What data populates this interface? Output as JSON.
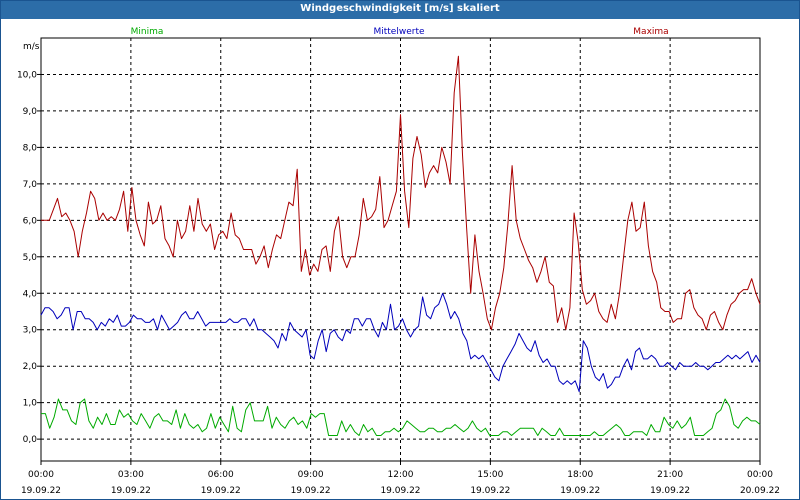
{
  "window": {
    "title": "Windgeschwindigkeit [m/s] skaliert"
  },
  "colors": {
    "min": "#00aa00",
    "mean": "#0000bb",
    "max": "#aa0000",
    "grid": "#000000",
    "titlebar": "#2c6da8"
  },
  "chart_data": {
    "type": "line",
    "title": "Windgeschwindigkeit [m/s] skaliert",
    "ylabel": "m/s",
    "xlabel": "",
    "ylim": [
      -0.6,
      11.0
    ],
    "xlim": [
      0,
      24
    ],
    "grid": true,
    "legend": "top",
    "yticks": [
      "0,0",
      "1,0",
      "2,0",
      "3,0",
      "4,0",
      "5,0",
      "6,0",
      "7,0",
      "8,0",
      "9,0",
      "10,0"
    ],
    "ytick_values": [
      0,
      1,
      2,
      3,
      4,
      5,
      6,
      7,
      8,
      9,
      10
    ],
    "xticks": [
      {
        "time": "00:00",
        "date": "19.09.22"
      },
      {
        "time": "03:00",
        "date": "19.09.22"
      },
      {
        "time": "06:00",
        "date": "19.09.22"
      },
      {
        "time": "09:00",
        "date": "19.09.22"
      },
      {
        "time": "12:00",
        "date": "19.09.22"
      },
      {
        "time": "15:00",
        "date": "19.09.22"
      },
      {
        "time": "18:00",
        "date": "19.09.22"
      },
      {
        "time": "21:00",
        "date": "19.09.22"
      },
      {
        "time": "00:00",
        "date": "20.09.22"
      }
    ],
    "series": [
      {
        "name": "Minima",
        "color": "#00aa00",
        "values": [
          0.7,
          0.7,
          0.3,
          0.6,
          1.1,
          0.8,
          0.8,
          0.5,
          0.4,
          1.0,
          1.1,
          0.5,
          0.3,
          0.6,
          0.4,
          0.7,
          0.4,
          0.4,
          0.8,
          0.6,
          0.7,
          0.5,
          0.4,
          0.7,
          0.5,
          0.3,
          0.6,
          0.7,
          0.5,
          0.5,
          0.4,
          0.8,
          0.3,
          0.7,
          0.4,
          0.3,
          0.4,
          0.2,
          0.3,
          0.7,
          0.3,
          0.6,
          0.4,
          0.2,
          0.9,
          0.3,
          0.2,
          0.8,
          1.0,
          0.5,
          0.5,
          0.5,
          0.9,
          0.3,
          0.6,
          0.4,
          0.3,
          0.5,
          0.6,
          0.4,
          0.5,
          0.3,
          0.7,
          0.6,
          0.7,
          0.7,
          0.1,
          0.1,
          0.1,
          0.5,
          0.2,
          0.4,
          0.2,
          0.1,
          0.4,
          0.2,
          0.3,
          0.1,
          0.1,
          0.2,
          0.2,
          0.3,
          0.2,
          0.3,
          0.5,
          0.4,
          0.3,
          0.2,
          0.2,
          0.3,
          0.3,
          0.2,
          0.2,
          0.3,
          0.3,
          0.4,
          0.3,
          0.2,
          0.3,
          0.5,
          0.3,
          0.2,
          0.3,
          0.1,
          0.1,
          0.1,
          0.2,
          0.2,
          0.1,
          0.2,
          0.3,
          0.3,
          0.3,
          0.3,
          0.1,
          0.3,
          0.2,
          0.1,
          0.1,
          0.3,
          0.1,
          0.1,
          0.1,
          0.1,
          0.1,
          0.1,
          0.1,
          0.2,
          0.1,
          0.1,
          0.2,
          0.3,
          0.4,
          0.3,
          0.1,
          0.1,
          0.2,
          0.2,
          0.2,
          0.1,
          0.4,
          0.2,
          0.2,
          0.6,
          0.4,
          0.3,
          0.5,
          0.3,
          0.4,
          0.6,
          0.1,
          0.1,
          0.1,
          0.2,
          0.3,
          0.7,
          0.8,
          1.1,
          0.9,
          0.4,
          0.3,
          0.5,
          0.6,
          0.5,
          0.5,
          0.4
        ]
      },
      {
        "name": "Mittelwerte",
        "color": "#0000bb",
        "values": [
          3.4,
          3.6,
          3.6,
          3.5,
          3.3,
          3.4,
          3.6,
          3.6,
          3.0,
          3.5,
          3.5,
          3.3,
          3.3,
          3.2,
          3.0,
          3.2,
          3.1,
          3.3,
          3.2,
          3.4,
          3.1,
          3.1,
          3.2,
          3.4,
          3.3,
          3.3,
          3.2,
          3.2,
          3.3,
          3.0,
          3.4,
          3.2,
          3.0,
          3.1,
          3.2,
          3.4,
          3.5,
          3.3,
          3.3,
          3.5,
          3.3,
          3.1,
          3.2,
          3.2,
          3.2,
          3.2,
          3.2,
          3.3,
          3.2,
          3.2,
          3.3,
          3.3,
          3.1,
          3.3,
          3.0,
          3.0,
          2.9,
          2.8,
          2.7,
          2.5,
          2.9,
          2.7,
          3.2,
          3.0,
          2.9,
          2.8,
          3.0,
          2.3,
          2.2,
          2.7,
          3.0,
          2.4,
          2.9,
          3.0,
          2.8,
          2.7,
          3.0,
          2.9,
          3.3,
          3.3,
          3.1,
          3.3,
          3.3,
          3.0,
          2.8,
          3.2,
          3.0,
          3.7,
          3.0,
          3.1,
          3.3,
          3.0,
          2.8,
          3.0,
          3.1,
          3.9,
          3.4,
          3.3,
          3.6,
          3.7,
          4.0,
          3.7,
          3.3,
          3.5,
          3.3,
          2.9,
          2.7,
          2.2,
          2.3,
          2.2,
          2.3,
          2.1,
          1.9,
          1.7,
          1.6,
          2.0,
          2.2,
          2.4,
          2.6,
          2.9,
          2.7,
          2.5,
          2.4,
          2.7,
          2.3,
          2.1,
          2.2,
          2.0,
          2.0,
          1.6,
          1.5,
          1.6,
          1.5,
          1.6,
          1.3,
          2.7,
          2.5,
          2.0,
          1.7,
          1.6,
          1.8,
          1.4,
          1.5,
          1.7,
          1.7,
          2.0,
          2.2,
          1.9,
          2.4,
          2.5,
          2.2,
          2.2,
          2.3,
          2.2,
          2.0,
          2.0,
          2.1,
          2.0,
          1.9,
          2.1,
          2.0,
          2.0,
          2.0,
          2.1,
          2.0,
          2.0,
          1.9,
          2.0,
          2.1,
          2.1,
          2.2,
          2.3,
          2.2,
          2.3,
          2.2,
          2.3,
          2.4,
          2.1,
          2.3,
          2.1
        ]
      },
      {
        "name": "Maxima",
        "color": "#aa0000",
        "values": [
          6.0,
          6.0,
          6.0,
          6.3,
          6.6,
          6.1,
          6.2,
          6.0,
          5.7,
          5.0,
          5.7,
          6.2,
          6.8,
          6.6,
          6.0,
          6.2,
          6.0,
          6.1,
          6.0,
          6.3,
          6.8,
          5.7,
          6.9,
          6.0,
          5.6,
          5.3,
          6.5,
          5.9,
          6.0,
          6.4,
          5.5,
          5.3,
          5.0,
          6.0,
          5.5,
          5.7,
          6.4,
          5.7,
          6.6,
          5.9,
          5.7,
          5.9,
          5.2,
          5.6,
          5.7,
          5.5,
          6.2,
          5.6,
          5.5,
          5.2,
          5.2,
          5.2,
          4.8,
          5.0,
          5.3,
          4.7,
          5.2,
          5.6,
          5.5,
          6.0,
          6.5,
          6.4,
          7.4,
          4.6,
          5.2,
          4.5,
          4.8,
          4.6,
          5.2,
          5.3,
          4.6,
          5.7,
          6.1,
          5.0,
          4.7,
          5.0,
          5.0,
          5.6,
          6.6,
          6.0,
          6.1,
          6.3,
          7.2,
          5.8,
          6.0,
          6.4,
          6.8,
          8.9,
          6.8,
          5.8,
          7.7,
          8.3,
          7.8,
          6.9,
          7.3,
          7.5,
          7.3,
          8.0,
          7.6,
          7.0,
          9.5,
          10.5,
          7.8,
          5.8,
          4.0,
          5.6,
          4.6,
          4.0,
          3.3,
          3.0,
          3.6,
          4.0,
          4.7,
          5.9,
          7.5,
          6.0,
          5.5,
          5.2,
          4.9,
          4.7,
          4.3,
          4.6,
          5.0,
          4.3,
          4.2,
          3.2,
          3.6,
          3.0,
          3.6,
          6.2,
          5.4,
          4.1,
          3.7,
          3.8,
          4.0,
          3.5,
          3.3,
          3.2,
          3.7,
          3.3,
          4.0,
          5.0,
          6.0,
          6.5,
          5.7,
          5.8,
          6.5,
          5.3,
          4.6,
          4.3,
          3.6,
          3.5,
          3.5,
          3.2,
          3.3,
          3.3,
          4.0,
          4.1,
          3.6,
          3.4,
          3.3,
          3.0,
          3.4,
          3.5,
          3.2,
          3.0,
          3.4,
          3.7,
          3.8,
          4.0,
          4.1,
          4.1,
          4.4,
          4.0,
          3.7
        ]
      }
    ]
  }
}
